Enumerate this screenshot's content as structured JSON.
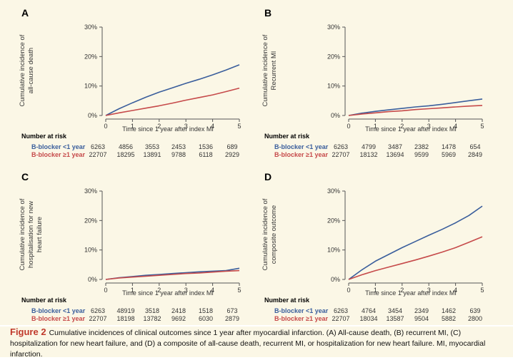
{
  "caption": {
    "label": "Figure 2",
    "text": "Cumulative incidences of clinical outcomes since 1 year after myocardial infarction. (A) All-cause death, (B) recurrent MI, (C) hospitalization for new heart failure, and (D) a composite of all-cause death, recurrent MI, or hospitalization for new heart failure. MI, myocardial infarction."
  },
  "colors": {
    "blue": "#3a5e9c",
    "red": "#c64a4a",
    "axis": "#555555"
  },
  "number_at_risk_label": "Number at risk",
  "series_names": [
    "B-blocker <1 year",
    "B-blocker ≥1 year"
  ],
  "chart_data": [
    {
      "panel": "A",
      "type": "line",
      "ylabel_lines": [
        "Cumulative incidence of",
        "all-cause death"
      ],
      "xlabel": "Time since 1 year after index MI",
      "x_ticks": [
        "0",
        "1",
        "2",
        "3",
        "4",
        "5"
      ],
      "y_ticks": [
        "0%",
        "10%",
        "20%",
        "30%"
      ],
      "xlim": [
        0,
        5
      ],
      "ylim": [
        0,
        30
      ],
      "series": [
        {
          "name": "B-blocker <1 year",
          "color": "#3a5e9c",
          "x": [
            0,
            0.5,
            1,
            1.5,
            2,
            2.5,
            3,
            3.5,
            4,
            4.5,
            5
          ],
          "y": [
            0,
            2.3,
            4.3,
            6.2,
            7.9,
            9.4,
            10.9,
            12.3,
            13.8,
            15.4,
            17.2
          ],
          "at_risk": [
            "6263",
            "4856",
            "3553",
            "2453",
            "1536",
            "689"
          ]
        },
        {
          "name": "B-blocker ≥1 year",
          "color": "#c64a4a",
          "x": [
            0,
            0.5,
            1,
            1.5,
            2,
            2.5,
            3,
            3.5,
            4,
            4.5,
            5
          ],
          "y": [
            0,
            0.9,
            1.7,
            2.5,
            3.3,
            4.2,
            5.2,
            6.1,
            7.0,
            8.1,
            9.3
          ],
          "at_risk": [
            "22707",
            "18295",
            "13891",
            "9788",
            "6118",
            "2929"
          ]
        }
      ]
    },
    {
      "panel": "B",
      "type": "line",
      "ylabel_lines": [
        "Cumulative incidence of",
        "Recurrent MI"
      ],
      "xlabel": "Time since 1 year after index MI",
      "x_ticks": [
        "0",
        "1",
        "2",
        "3",
        "4",
        "5"
      ],
      "y_ticks": [
        "0%",
        "10%",
        "20%",
        "30%"
      ],
      "xlim": [
        0,
        5
      ],
      "ylim": [
        0,
        30
      ],
      "series": [
        {
          "name": "B-blocker <1 year",
          "color": "#3a5e9c",
          "x": [
            0,
            0.5,
            1,
            1.5,
            2,
            2.5,
            3,
            3.5,
            4,
            4.5,
            5
          ],
          "y": [
            0,
            0.8,
            1.4,
            1.9,
            2.4,
            2.9,
            3.3,
            3.8,
            4.4,
            5.0,
            5.6
          ],
          "at_risk": [
            "6263",
            "4799",
            "3487",
            "2382",
            "1478",
            "654"
          ]
        },
        {
          "name": "B-blocker ≥1 year",
          "color": "#c64a4a",
          "x": [
            0,
            0.5,
            1,
            1.5,
            2,
            2.5,
            3,
            3.5,
            4,
            4.5,
            5
          ],
          "y": [
            0,
            0.5,
            0.9,
            1.3,
            1.6,
            2.0,
            2.3,
            2.6,
            2.9,
            3.2,
            3.4
          ],
          "at_risk": [
            "22707",
            "18132",
            "13694",
            "9599",
            "5969",
            "2849"
          ]
        }
      ]
    },
    {
      "panel": "C",
      "type": "line",
      "ylabel_lines": [
        "Cumulative incidence of",
        "hospitalisation for new",
        "heart failure"
      ],
      "xlabel": "Time since 1 year after index MI",
      "x_ticks": [
        "0",
        "1",
        "2",
        "3",
        "4",
        "5"
      ],
      "y_ticks": [
        "0%",
        "10%",
        "20%",
        "30%"
      ],
      "xlim": [
        0,
        5
      ],
      "ylim": [
        0,
        30
      ],
      "series": [
        {
          "name": "B-blocker <1 year",
          "color": "#3a5e9c",
          "x": [
            0,
            0.5,
            1,
            1.5,
            2,
            2.5,
            3,
            3.5,
            4,
            4.5,
            5
          ],
          "y": [
            0,
            0.6,
            1.0,
            1.4,
            1.7,
            2.0,
            2.3,
            2.6,
            2.8,
            3.0,
            3.8
          ],
          "at_risk": [
            "6263",
            "48919",
            "3518",
            "2418",
            "1518",
            "673"
          ]
        },
        {
          "name": "B-blocker ≥1 year",
          "color": "#c64a4a",
          "x": [
            0,
            0.5,
            1,
            1.5,
            2,
            2.5,
            3,
            3.5,
            4,
            4.5,
            5
          ],
          "y": [
            0,
            0.5,
            0.8,
            1.1,
            1.4,
            1.7,
            2.0,
            2.2,
            2.5,
            2.8,
            3.0
          ],
          "at_risk": [
            "22707",
            "18198",
            "13782",
            "9692",
            "6030",
            "2879"
          ]
        }
      ]
    },
    {
      "panel": "D",
      "type": "line",
      "ylabel_lines": [
        "Cumulative incidence of",
        "composite outcome"
      ],
      "xlabel": "Time since 1 year after index MI",
      "x_ticks": [
        "0",
        "1",
        "2",
        "3",
        "4",
        "5"
      ],
      "y_ticks": [
        "0%",
        "10%",
        "20%",
        "30%"
      ],
      "xlim": [
        0,
        5
      ],
      "ylim": [
        0,
        30
      ],
      "series": [
        {
          "name": "B-blocker <1 year",
          "color": "#3a5e9c",
          "x": [
            0,
            0.5,
            1,
            1.5,
            2,
            2.5,
            3,
            3.5,
            4,
            4.5,
            5
          ],
          "y": [
            0,
            3.3,
            6.2,
            8.5,
            10.8,
            12.9,
            15.0,
            17.0,
            19.2,
            21.7,
            24.9
          ],
          "at_risk": [
            "6263",
            "4764",
            "3454",
            "2349",
            "1462",
            "639"
          ]
        },
        {
          "name": "B-blocker ≥1 year",
          "color": "#c64a4a",
          "x": [
            0,
            0.5,
            1,
            1.5,
            2,
            2.5,
            3,
            3.5,
            4,
            4.5,
            5
          ],
          "y": [
            0,
            1.6,
            3.0,
            4.2,
            5.4,
            6.6,
            7.9,
            9.3,
            10.8,
            12.6,
            14.5
          ],
          "at_risk": [
            "22707",
            "18034",
            "13587",
            "9504",
            "5882",
            "2800"
          ]
        }
      ]
    }
  ]
}
